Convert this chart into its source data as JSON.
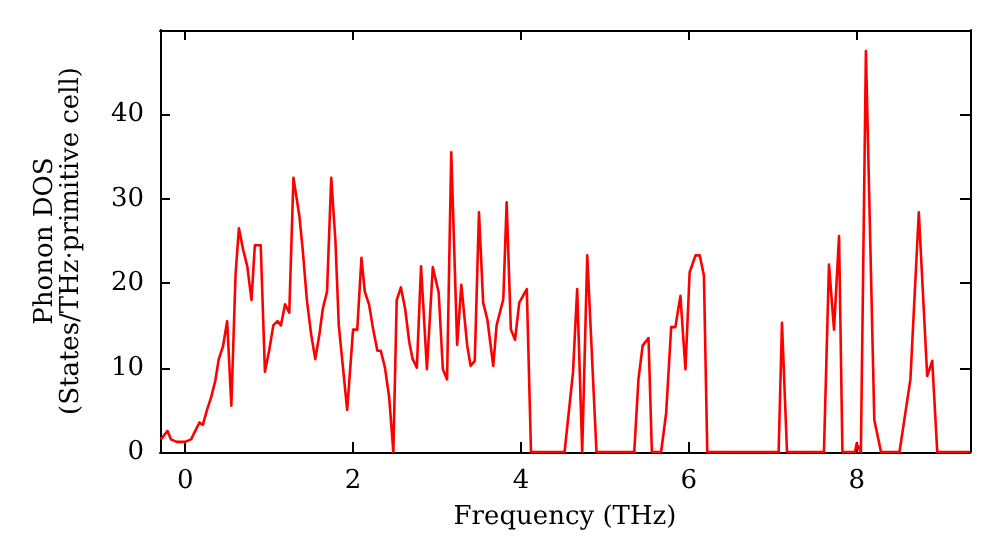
{
  "chart_data": {
    "type": "line",
    "xlabel": "Frequency (THz)",
    "ylabel": "Phonon DOS\n(States/THz·primitive cell)",
    "xlim": [
      -0.3,
      9.35
    ],
    "ylim": [
      0,
      50
    ],
    "xticks": [
      0,
      2,
      4,
      6,
      8
    ],
    "yticks": [
      0,
      10,
      20,
      30,
      40
    ],
    "grid": false,
    "marker": "none",
    "line_style": "solid",
    "series": [
      {
        "color": "#ff0000",
        "x": [
          -0.29,
          -0.21,
          -0.17,
          -0.1,
          0,
          0.07,
          0.12,
          0.17,
          0.21,
          0.26,
          0.31,
          0.36,
          0.4,
          0.45,
          0.5,
          0.55,
          0.6,
          0.64,
          0.69,
          0.74,
          0.79,
          0.83,
          0.9,
          0.95,
          1.0,
          1.05,
          1.1,
          1.14,
          1.19,
          1.24,
          1.29,
          1.36,
          1.4,
          1.45,
          1.5,
          1.55,
          1.6,
          1.64,
          1.69,
          1.74,
          1.79,
          1.83,
          1.88,
          1.93,
          2.0,
          2.05,
          2.1,
          2.14,
          2.19,
          2.24,
          2.29,
          2.33,
          2.38,
          2.43,
          2.48,
          2.52,
          2.57,
          2.62,
          2.67,
          2.71,
          2.76,
          2.81,
          2.88,
          2.95,
          3.02,
          3.07,
          3.12,
          3.17,
          3.24,
          3.29,
          3.36,
          3.4,
          3.45,
          3.5,
          3.55,
          3.6,
          3.67,
          3.71,
          3.79,
          3.83,
          3.88,
          3.93,
          3.98,
          4.07,
          4.12,
          4.52,
          4.62,
          4.67,
          4.73,
          4.79,
          4.9,
          5.35,
          5.4,
          5.45,
          5.52,
          5.56,
          5.67,
          5.73,
          5.79,
          5.84,
          5.9,
          5.96,
          6.01,
          6.08,
          6.13,
          6.18,
          6.22,
          7.07,
          7.11,
          7.17,
          7.61,
          7.67,
          7.73,
          7.79,
          7.83,
          7.98,
          8.0,
          8.05,
          8.11,
          8.21,
          8.29,
          8.51,
          8.64,
          8.74,
          8.84,
          8.9,
          8.96,
          9.35
        ],
        "values": [
          1.5,
          2.5,
          1.5,
          1.2,
          1.2,
          1.5,
          2.5,
          3.5,
          3.2,
          5,
          6.5,
          8.5,
          11,
          12.5,
          15.5,
          5.5,
          21,
          26.5,
          24,
          22,
          18,
          24.5,
          24.5,
          9.5,
          12,
          15,
          15.5,
          15,
          17.5,
          16.5,
          32.5,
          28,
          24,
          18,
          14,
          11,
          14,
          17,
          19,
          32.5,
          25,
          15,
          10,
          5,
          14.5,
          14.5,
          23,
          19,
          17.5,
          14.5,
          12,
          12,
          10,
          6.5,
          0,
          18,
          19.5,
          17,
          13,
          11,
          10,
          22,
          9.8,
          21.9,
          18.9,
          9.8,
          8.6,
          35.5,
          12.7,
          19.8,
          12.6,
          10.2,
          10.8,
          28.4,
          17.7,
          15.7,
          10.2,
          15,
          18.1,
          29.6,
          14.5,
          13.3,
          17.7,
          19.3,
          0,
          0,
          9.4,
          19.3,
          0,
          23.3,
          0,
          0,
          8.6,
          12.6,
          13.5,
          0,
          0,
          4.6,
          14.8,
          14.8,
          18.5,
          9.8,
          21.3,
          23.3,
          23.3,
          20.9,
          0,
          0,
          15.3,
          0,
          0,
          22.2,
          14.5,
          25.6,
          0,
          0,
          1,
          0,
          47.5,
          3.8,
          0,
          0,
          8.6,
          28.4,
          9,
          10.8,
          0,
          0
        ]
      }
    ]
  }
}
